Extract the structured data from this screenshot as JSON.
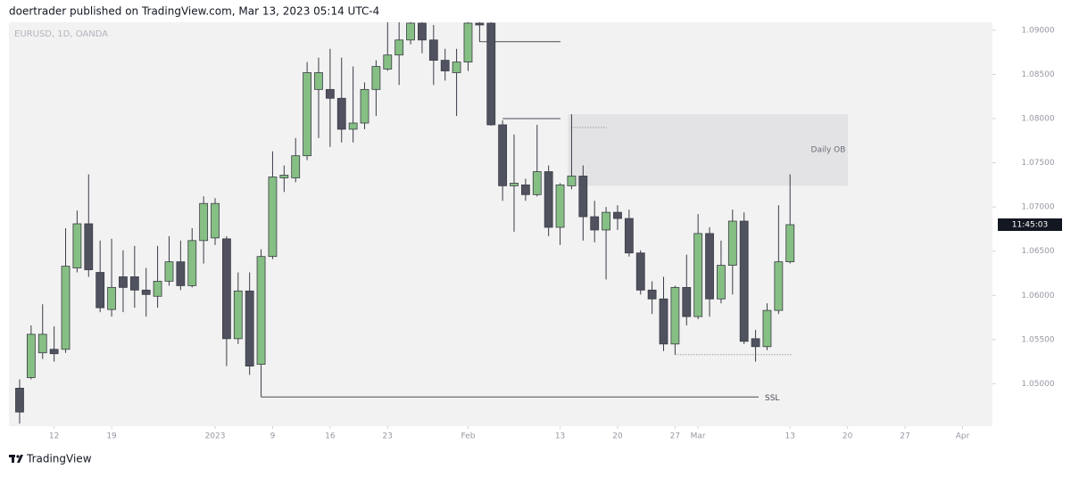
{
  "header": "doertrader published on TradingView.com, Mar 13, 2023 05:14 UTC-4",
  "footer": "TradingView",
  "chart_data": {
    "type": "candlestick",
    "symbol": "EURUSD, 1D, OANDA",
    "countdown": "11:45:03",
    "up_color": "#86bf83",
    "down_color": "#50525f",
    "open": [
      1.0495,
      1.0507,
      1.0535,
      1.0539,
      1.0539,
      1.0631,
      1.0681,
      1.0626,
      1.0584,
      1.0621,
      1.0621,
      1.0606,
      1.0599,
      1.0616,
      1.0638,
      1.0611,
      1.0662,
      1.0665,
      1.0664,
      1.0551,
      1.0605,
      1.0522,
      1.0644,
      1.0733,
      1.0733,
      1.0758,
      1.0833,
      1.0833,
      1.0823,
      1.0788,
      1.0795,
      1.0833,
      1.0856,
      1.0872,
      1.0889,
      1.0908,
      1.0889,
      1.0866,
      1.0852,
      1.0864,
      1.0908,
      1.0908,
      1.0793,
      1.0724,
      1.0725,
      1.0714,
      1.074,
      1.0677,
      1.0724,
      1.0735,
      1.0689,
      1.0674,
      1.0694,
      1.0687,
      1.0648,
      1.0606,
      1.0596,
      1.0545,
      1.0609,
      1.0576,
      1.067,
      1.0596,
      1.0634,
      1.0684,
      1.0551,
      1.0542,
      1.0583,
      1.0638
    ],
    "high": [
      1.0505,
      1.0566,
      1.059,
      1.0565,
      1.0676,
      1.0696,
      1.0737,
      1.0662,
      1.0664,
      1.0651,
      1.0656,
      1.0631,
      1.0656,
      1.0667,
      1.0662,
      1.0676,
      1.0712,
      1.071,
      1.0667,
      1.0626,
      1.0626,
      1.0652,
      1.0763,
      1.0747,
      1.0778,
      1.0864,
      1.0869,
      1.0879,
      1.0869,
      1.0859,
      1.0841,
      1.0866,
      1.0909,
      1.0909,
      1.0909,
      1.0909,
      1.0906,
      1.0879,
      1.0879,
      1.0909,
      1.0909,
      1.0909,
      1.0798,
      1.0782,
      1.0732,
      1.0793,
      1.0747,
      1.0727,
      1.0805,
      1.0747,
      1.0707,
      1.07,
      1.0702,
      1.0697,
      1.0651,
      1.0616,
      1.0621,
      1.0611,
      1.0646,
      1.0692,
      1.0677,
      1.0662,
      1.0697,
      1.0694,
      1.0561,
      1.0591,
      1.0702,
      1.0737
    ],
    "low": [
      1.0455,
      1.0505,
      1.0528,
      1.0525,
      1.0535,
      1.0626,
      1.0621,
      1.0581,
      1.0576,
      1.0581,
      1.0586,
      1.0576,
      1.0586,
      1.0611,
      1.0606,
      1.0609,
      1.0636,
      1.0657,
      1.052,
      1.0545,
      1.051,
      1.0485,
      1.0641,
      1.0717,
      1.0728,
      1.0753,
      1.0778,
      1.0768,
      1.0773,
      1.0773,
      1.0788,
      1.0803,
      1.0854,
      1.0838,
      1.0884,
      1.0874,
      1.0838,
      1.0843,
      1.0803,
      1.0854,
      1.0887,
      1.0792,
      1.0707,
      1.0672,
      1.0707,
      1.0712,
      1.0667,
      1.0657,
      1.072,
      1.0662,
      1.066,
      1.0618,
      1.0674,
      1.0644,
      1.0601,
      1.0579,
      1.0537,
      1.0533,
      1.0566,
      1.0573,
      1.0576,
      1.0591,
      1.0601,
      1.0545,
      1.0525,
      1.0538,
      1.0579,
      1.0636
    ],
    "close": [
      1.0468,
      1.0556,
      1.0556,
      1.0534,
      1.0633,
      1.0681,
      1.0629,
      1.0586,
      1.0609,
      1.0609,
      1.0606,
      1.0601,
      1.0616,
      1.0638,
      1.0611,
      1.0662,
      1.0704,
      1.0704,
      1.0551,
      1.0605,
      1.052,
      1.0644,
      1.0734,
      1.0736,
      1.0758,
      1.0852,
      1.0852,
      1.0823,
      1.0788,
      1.0795,
      1.0833,
      1.0859,
      1.0872,
      1.0889,
      1.0908,
      1.0889,
      1.0866,
      1.0854,
      1.0864,
      1.0908,
      1.0906,
      1.0793,
      1.0724,
      1.0727,
      1.0714,
      1.074,
      1.0677,
      1.0725,
      1.0735,
      1.0689,
      1.0674,
      1.0694,
      1.0687,
      1.0648,
      1.0606,
      1.0596,
      1.0545,
      1.0609,
      1.0576,
      1.067,
      1.0596,
      1.0634,
      1.0684,
      1.0548,
      1.0542,
      1.0583,
      1.0638,
      1.068
    ],
    "ylim": [
      1.0452,
      1.0909
    ],
    "yticks": [
      {
        "value": 1.05,
        "label": "1.05000"
      },
      {
        "value": 1.055,
        "label": "1.05500"
      },
      {
        "value": 1.06,
        "label": "1.06000"
      },
      {
        "value": 1.065,
        "label": "1.06500"
      },
      {
        "value": 1.07,
        "label": "1.07000"
      },
      {
        "value": 1.075,
        "label": "1.07500"
      },
      {
        "value": 1.08,
        "label": "1.08000"
      },
      {
        "value": 1.085,
        "label": "1.08500"
      },
      {
        "value": 1.09,
        "label": "1.09000"
      }
    ],
    "xlim": [
      -0.93,
      84.6
    ],
    "xticks": [
      {
        "value": 3,
        "label": "12"
      },
      {
        "value": 8,
        "label": "19"
      },
      {
        "value": 17,
        "label": "2023"
      },
      {
        "value": 22,
        "label": "9"
      },
      {
        "value": 27,
        "label": "16"
      },
      {
        "value": 32,
        "label": "23"
      },
      {
        "value": 39,
        "label": "Feb"
      },
      {
        "value": 47,
        "label": "13"
      },
      {
        "value": 52,
        "label": "20"
      },
      {
        "value": 57,
        "label": "27"
      },
      {
        "value": 59,
        "label": "Mar"
      },
      {
        "value": 67,
        "label": "13"
      },
      {
        "value": 72,
        "label": "20"
      },
      {
        "value": 77,
        "label": "27"
      },
      {
        "value": 82,
        "label": "Apr"
      }
    ],
    "zone": {
      "label": "Daily OB",
      "top": 1.0805,
      "bottom": 1.0724
    },
    "levels": [
      {
        "price": 1.0887,
        "style": "solid"
      },
      {
        "price": 1.08,
        "style": "solid"
      },
      {
        "price": 1.079,
        "style": "dotted"
      },
      {
        "price": 1.0485,
        "style": "solid",
        "label": "SSL"
      },
      {
        "price": 1.0533,
        "style": "dotted"
      }
    ]
  }
}
